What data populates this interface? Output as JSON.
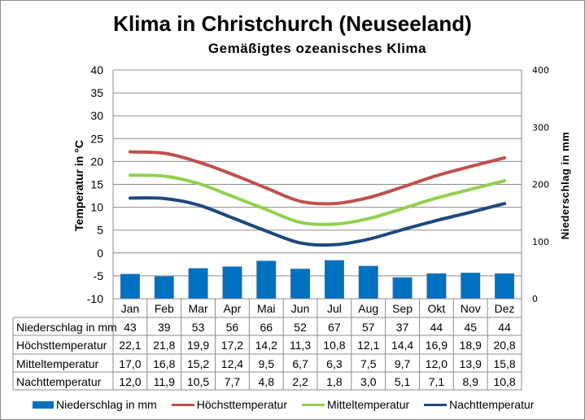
{
  "chart_data": {
    "type": "bar+line",
    "title": "Klima in Christchurch (Neuseeland)",
    "subtitle": "Gemäßigtes ozeanisches Klima",
    "categories": [
      "Jan",
      "Feb",
      "Mar",
      "Apr",
      "Mai",
      "Jun",
      "Jul",
      "Aug",
      "Sep",
      "Okt",
      "Nov",
      "Dez"
    ],
    "y_left": {
      "label": "Temperatur in °C",
      "range": [
        -10,
        40
      ],
      "ticks": [
        "40",
        "35",
        "30",
        "25",
        "20",
        "15",
        "10",
        "5",
        "0",
        "-5",
        "-10"
      ]
    },
    "y_right": {
      "label": "Niederschlag in mm",
      "range": [
        0,
        400
      ],
      "ticks": [
        "400",
        "300",
        "200",
        "100",
        "0"
      ]
    },
    "grid": true,
    "legend_position": "bottom",
    "series": [
      {
        "name": "Niederschlag in mm",
        "type": "bar",
        "axis": "right",
        "color": "#0070c0",
        "values": [
          43,
          39,
          53,
          56,
          66,
          52,
          67,
          57,
          37,
          44,
          45,
          44
        ],
        "labels": [
          "43",
          "39",
          "53",
          "56",
          "66",
          "52",
          "67",
          "57",
          "37",
          "44",
          "45",
          "44"
        ]
      },
      {
        "name": "Höchsttemperatur",
        "type": "line",
        "axis": "left",
        "color": "#c0504d",
        "values": [
          22.1,
          21.8,
          19.9,
          17.2,
          14.2,
          11.3,
          10.8,
          12.1,
          14.4,
          16.9,
          18.9,
          20.8
        ],
        "labels": [
          "22,1",
          "21,8",
          "19,9",
          "17,2",
          "14,2",
          "11,3",
          "10,8",
          "12,1",
          "14,4",
          "16,9",
          "18,9",
          "20,8"
        ]
      },
      {
        "name": "Mitteltemperatur",
        "type": "line",
        "axis": "left",
        "color": "#92d050",
        "values": [
          17.0,
          16.8,
          15.2,
          12.4,
          9.5,
          6.7,
          6.3,
          7.5,
          9.7,
          12.0,
          13.9,
          15.8
        ],
        "labels": [
          "17,0",
          "16,8",
          "15,2",
          "12,4",
          "9,5",
          "6,7",
          "6,3",
          "7,5",
          "9,7",
          "12,0",
          "13,9",
          "15,8"
        ]
      },
      {
        "name": "Nachttemperatur",
        "type": "line",
        "axis": "left",
        "color": "#1f497d",
        "values": [
          12.0,
          11.9,
          10.5,
          7.7,
          4.8,
          2.2,
          1.8,
          3.0,
          5.1,
          7.1,
          8.9,
          10.8
        ],
        "labels": [
          "12,0",
          "11,9",
          "10,5",
          "7,7",
          "4,8",
          "2,2",
          "1,8",
          "3,0",
          "5,1",
          "7,1",
          "8,9",
          "10,8"
        ]
      }
    ]
  }
}
